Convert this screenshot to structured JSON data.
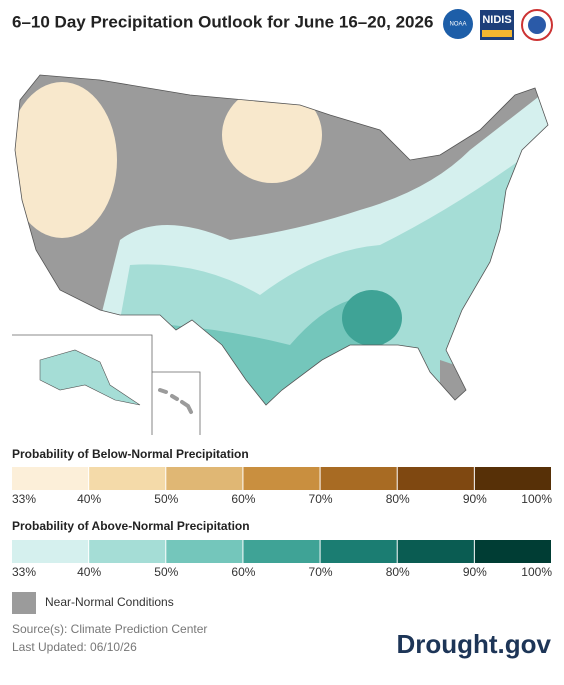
{
  "header": {
    "title": "6–10 Day Precipitation Outlook for June 16–20, 2026",
    "logos": [
      "NOAA",
      "NIDIS"
    ]
  },
  "legend": {
    "below": {
      "title": "Probability of Below-Normal Precipitation",
      "colors": [
        "#fcefd9",
        "#f4daa9",
        "#e0b774",
        "#c98f3f",
        "#a86b23",
        "#7f4811",
        "#573007"
      ],
      "labels": [
        "33%",
        "40%",
        "50%",
        "60%",
        "70%",
        "80%",
        "90%",
        "100%"
      ]
    },
    "above": {
      "title": "Probability of Above-Normal Precipitation",
      "colors": [
        "#d5f0ee",
        "#a5ddd6",
        "#74c6bb",
        "#3fa396",
        "#1b7d72",
        "#0a5c52",
        "#003d34"
      ],
      "labels": [
        "33%",
        "40%",
        "50%",
        "60%",
        "70%",
        "80%",
        "90%",
        "100%"
      ]
    },
    "near_normal": {
      "label": "Near-Normal Conditions",
      "color": "#9b9b9b"
    }
  },
  "footer": {
    "source": "Source(s): Climate Prediction Center",
    "updated": "Last Updated: 06/10/26",
    "brand": "Drought.gov"
  }
}
